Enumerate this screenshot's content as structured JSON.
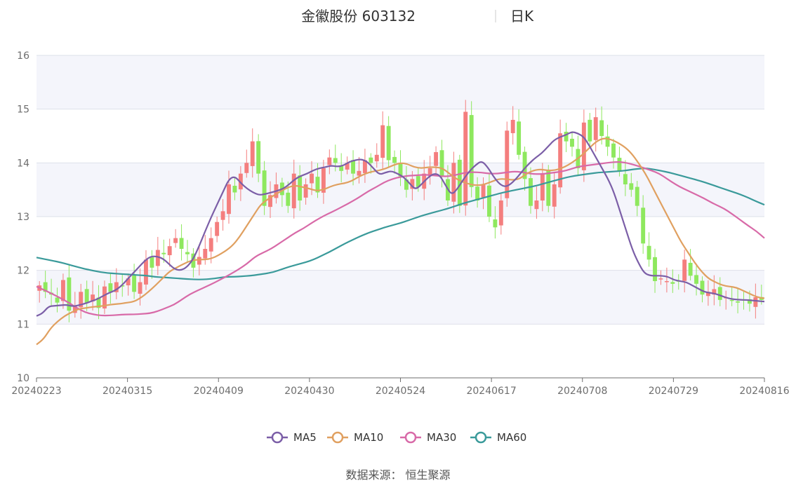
{
  "header": {
    "stock_name": "金徽股份 603132",
    "period": "日K"
  },
  "source": "数据来源： 恒生聚源",
  "colors": {
    "up": "#f47e7e",
    "down": "#8ee85e",
    "ma5": "#7b5ea7",
    "ma10": "#e0a060",
    "ma30": "#d86aa8",
    "ma60": "#3a9a9a",
    "band": "#f4f5fb",
    "grid": "#dde0ea"
  },
  "chart_data": {
    "type": "candlestick",
    "title": "金徽股份 603132",
    "ylim": [
      10,
      16
    ],
    "y_ticks": [
      "10",
      "11",
      "12",
      "13",
      "14",
      "15",
      "16"
    ],
    "x_tick_labels": [
      "20240223",
      "20240315",
      "20240409",
      "20240430",
      "20240524",
      "20240617",
      "20240708",
      "20240729",
      "20240816"
    ],
    "legend": [
      "MA5",
      "MA10",
      "MA30",
      "MA60"
    ],
    "legend_position": "bottom",
    "closes": [
      11.72,
      11.6,
      11.55,
      11.4,
      11.82,
      11.25,
      11.35,
      11.6,
      11.4,
      11.55,
      11.3,
      11.7,
      11.6,
      11.78,
      11.7,
      11.85,
      11.6,
      11.78,
      12.2,
      12.05,
      12.38,
      12.3,
      12.45,
      12.6,
      12.4,
      12.3,
      12.05,
      12.25,
      12.4,
      12.6,
      12.9,
      13.1,
      13.6,
      13.45,
      13.8,
      14.0,
      14.4,
      13.8,
      13.2,
      13.4,
      13.6,
      13.4,
      13.2,
      13.8,
      13.3,
      13.6,
      13.8,
      13.45,
      13.9,
      14.1,
      14.0,
      13.85,
      14.0,
      13.8,
      13.85,
      14.05,
      14.0,
      14.15,
      14.7,
      14.05,
      14.0,
      13.75,
      13.5,
      13.7,
      13.55,
      13.8,
      13.9,
      14.2,
      13.75,
      13.3,
      14.0,
      13.2,
      14.95,
      13.55,
      13.3,
      13.6,
      13.0,
      12.8,
      13.3,
      14.6,
      14.8,
      14.15,
      13.7,
      13.2,
      13.3,
      13.8,
      13.2,
      13.6,
      14.55,
      14.4,
      14.3,
      13.9,
      14.75,
      14.4,
      14.85,
      14.5,
      14.3,
      14.1,
      13.85,
      13.6,
      13.5,
      13.2,
      12.5,
      12.2,
      11.8,
      11.85,
      11.8,
      11.75,
      11.8,
      12.2,
      11.9,
      11.75,
      11.55,
      11.6,
      11.65,
      11.45,
      11.5,
      11.45,
      11.4,
      11.45,
      11.38,
      11.5,
      11.45
    ],
    "ma5": [
      11.15,
      11.2,
      11.33,
      11.34,
      11.35,
      11.36,
      11.33,
      11.35,
      11.38,
      11.42,
      11.46,
      11.52,
      11.58,
      11.62,
      11.7,
      11.82,
      11.94,
      12.06,
      12.18,
      12.26,
      12.26,
      12.22,
      12.12,
      12.02,
      12.0,
      12.06,
      12.2,
      12.44,
      12.72,
      12.98,
      13.22,
      13.46,
      13.7,
      13.75,
      13.62,
      13.52,
      13.45,
      13.4,
      13.42,
      13.45,
      13.48,
      13.52,
      13.6,
      13.7,
      13.76,
      13.8,
      13.86,
      13.9,
      13.92,
      13.95,
      13.93,
      13.95,
      14.02,
      14.05,
      14.07,
      14.02,
      13.9,
      13.78,
      13.82,
      13.85,
      13.8,
      13.74,
      13.62,
      13.5,
      13.6,
      13.72,
      13.8,
      13.78,
      13.58,
      13.4,
      13.52,
      13.7,
      13.85,
      13.96,
      14.04,
      13.92,
      13.74,
      13.6,
      13.55,
      13.62,
      13.74,
      13.88,
      14.0,
      14.1,
      14.18,
      14.3,
      14.42,
      14.48,
      14.52,
      14.58,
      14.55,
      14.48,
      14.3,
      14.1,
      13.9,
      13.7,
      13.45,
      13.1,
      12.75,
      12.4,
      12.15,
      11.95,
      11.9,
      11.9,
      11.9,
      11.88,
      11.82,
      11.8,
      11.78,
      11.72,
      11.66,
      11.6,
      11.58,
      11.56,
      11.52,
      11.48,
      11.46,
      11.45,
      11.45,
      11.44,
      11.43,
      11.42
    ],
    "ma10": [
      10.62,
      10.72,
      10.92,
      11.05,
      11.15,
      11.22,
      11.28,
      11.3,
      11.32,
      11.33,
      11.35,
      11.37,
      11.38,
      11.4,
      11.42,
      11.5,
      11.6,
      11.72,
      11.85,
      11.98,
      12.05,
      12.12,
      12.18,
      12.2,
      12.2,
      12.22,
      12.28,
      12.36,
      12.46,
      12.62,
      12.82,
      13.02,
      13.22,
      13.32,
      13.4,
      13.48,
      13.55,
      13.58,
      13.55,
      13.52,
      13.48,
      13.5,
      13.56,
      13.6,
      13.62,
      13.66,
      13.74,
      13.8,
      13.84,
      13.86,
      13.9,
      13.96,
      14.0,
      13.98,
      13.92,
      13.9,
      13.92,
      13.92,
      13.9,
      13.8,
      13.7,
      13.64,
      13.6,
      13.58,
      13.6,
      13.65,
      13.7,
      13.7,
      13.68,
      13.7,
      13.8,
      13.86,
      13.88,
      13.86,
      13.86,
      13.9,
      13.96,
      14.05,
      14.15,
      14.28,
      14.4,
      14.46,
      14.44,
      14.38,
      14.3,
      14.18,
      14.0,
      13.8,
      13.55,
      13.3,
      13.05,
      12.8,
      12.55,
      12.35,
      12.15,
      11.98,
      11.85,
      11.78,
      11.72,
      11.7,
      11.68,
      11.62,
      11.56,
      11.5,
      11.48
    ],
    "ma30": [
      11.7,
      11.63,
      11.56,
      11.48,
      11.4,
      11.3,
      11.22,
      11.18,
      11.16,
      11.16,
      11.17,
      11.18,
      11.18,
      11.19,
      11.2,
      11.24,
      11.3,
      11.36,
      11.46,
      11.56,
      11.63,
      11.7,
      11.77,
      11.85,
      11.93,
      12.02,
      12.12,
      12.25,
      12.33,
      12.4,
      12.5,
      12.6,
      12.7,
      12.78,
      12.88,
      12.97,
      13.05,
      13.12,
      13.2,
      13.28,
      13.37,
      13.47,
      13.55,
      13.64,
      13.7,
      13.74,
      13.76,
      13.77,
      13.78,
      13.77,
      13.75,
      13.75,
      13.78,
      13.82,
      13.83,
      13.82,
      13.8,
      13.8,
      13.82,
      13.84,
      13.83,
      13.8,
      13.79,
      13.8,
      13.82,
      13.84,
      13.88,
      13.93,
      13.95,
      13.97,
      13.99,
      14.01,
      14.02,
      14.0,
      13.96,
      13.91,
      13.86,
      13.8,
      13.7,
      13.6,
      13.52,
      13.45,
      13.38,
      13.3,
      13.22,
      13.15,
      13.05,
      12.94,
      12.83,
      12.73,
      12.6
    ],
    "ma60": [
      12.24,
      12.21,
      12.18,
      12.15,
      12.11,
      12.07,
      12.03,
      12.0,
      11.97,
      11.95,
      11.94,
      11.93,
      11.92,
      11.91,
      11.9,
      11.88,
      11.87,
      11.86,
      11.85,
      11.84,
      11.83,
      11.83,
      11.84,
      11.86,
      11.88,
      11.88,
      11.89,
      11.9,
      11.92,
      11.94,
      11.97,
      12.02,
      12.07,
      12.11,
      12.15,
      12.2,
      12.27,
      12.34,
      12.42,
      12.5,
      12.57,
      12.64,
      12.7,
      12.75,
      12.8,
      12.84,
      12.88,
      12.93,
      12.98,
      13.03,
      13.07,
      13.11,
      13.15,
      13.2,
      13.25,
      13.29,
      13.33,
      13.37,
      13.41,
      13.45,
      13.48,
      13.51,
      13.54,
      13.57,
      13.61,
      13.65,
      13.69,
      13.73,
      13.76,
      13.78,
      13.8,
      13.82,
      13.83,
      13.84,
      13.85,
      13.87,
      13.89,
      13.9,
      13.88,
      13.85,
      13.82,
      13.78,
      13.74,
      13.7,
      13.66,
      13.61,
      13.56,
      13.51,
      13.46,
      13.41,
      13.35,
      13.28,
      13.22
    ]
  }
}
